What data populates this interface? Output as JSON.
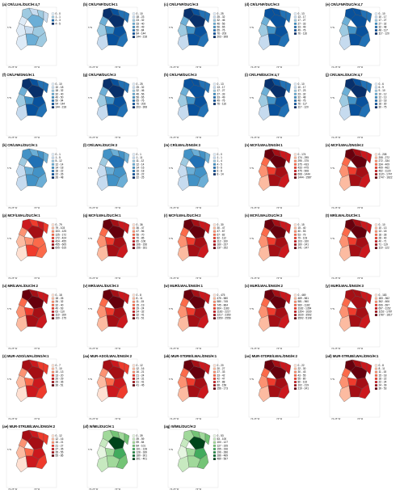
{
  "axis_labels": {
    "lat": "5°N",
    "lon1": "74.25°W",
    "lon2": "74°W"
  },
  "palettes": {
    "blue": [
      "#deebf7",
      "#c6dbef",
      "#9ecae1",
      "#6baed6",
      "#4292c6",
      "#2171b5",
      "#08519c",
      "#08306b"
    ],
    "red": [
      "#fee0d2",
      "#fcbba1",
      "#fc9272",
      "#fb6a4a",
      "#ef3b2c",
      "#cb181d",
      "#a50f15",
      "#67000d"
    ],
    "green": [
      "#e5f5e0",
      "#c7e9c0",
      "#a1d99b",
      "#74c476",
      "#41ab5d",
      "#238b45",
      "#006d2c",
      "#00441b"
    ]
  },
  "panels": [
    {
      "title": "(a) CR/LUAL/DUC/H:4,7",
      "palette": "blue",
      "legend": [
        "0 - 0",
        "1 - 1",
        "2 - 3",
        "4 - 5"
      ],
      "fills": [
        2,
        1,
        2,
        0,
        3,
        1,
        2,
        1,
        0,
        0,
        3,
        2
      ]
    },
    {
      "title": "(b) CR/LFNF/DUC/H:1",
      "palette": "blue",
      "legend": [
        "0 - 10",
        "18 - 23",
        "23 - 32",
        "33 - 40",
        "40 - 49",
        "50 - 84",
        "84 - 144",
        "144 - 218"
      ],
      "fills": [
        7,
        6,
        5,
        3,
        7,
        5,
        6,
        4,
        2,
        1,
        6,
        5
      ]
    },
    {
      "title": "(c) CR/LFNF/DUC/H:3",
      "palette": "blue",
      "legend": [
        "0 - 25",
        "25 - 32",
        "32 - 46",
        "46 - 56",
        "56 - 65",
        "65 - 76",
        "76 - 203",
        "203 - 308"
      ],
      "fills": [
        7,
        6,
        5,
        3,
        7,
        5,
        6,
        4,
        2,
        1,
        6,
        5
      ]
    },
    {
      "title": "(d) CR/LFNF/DUC/H:3",
      "palette": "blue",
      "legend": [
        "0 - 13",
        "13 - 17",
        "17 - 27",
        "27 - 33",
        "33 - 49",
        "49 - 76",
        "76 - 116"
      ],
      "fills": [
        6,
        6,
        5,
        3,
        6,
        5,
        6,
        4,
        2,
        1,
        6,
        5
      ]
    },
    {
      "title": "(e) CR/LFNF/DUC/H:4,7",
      "palette": "blue",
      "legend": [
        "0 - 10",
        "10 - 17",
        "17 - 27",
        "27 - 32",
        "32 - 48",
        "48 - 117",
        "117 - 120"
      ],
      "fills": [
        6,
        6,
        5,
        3,
        6,
        5,
        6,
        4,
        2,
        1,
        6,
        5
      ]
    },
    {
      "title": "(f) CR/LFM/DNG/H:1",
      "palette": "blue",
      "legend": [
        "0 - 10",
        "10 - 18",
        "18 - 32",
        "32 - 40",
        "40 - 50",
        "50 - 94",
        "94 - 144",
        "144 - 218"
      ],
      "fills": [
        7,
        6,
        5,
        3,
        7,
        5,
        6,
        4,
        2,
        1,
        6,
        5
      ]
    },
    {
      "title": "(g) CR/LFM/DUC/H:3",
      "palette": "blue",
      "legend": [
        "0 - 25",
        "25 - 32",
        "32 - 46",
        "46 - 56",
        "56 - 65",
        "65 - 76",
        "76 - 203",
        "203 - 308"
      ],
      "fills": [
        7,
        6,
        5,
        3,
        7,
        5,
        6,
        4,
        2,
        1,
        6,
        5
      ]
    },
    {
      "title": "(h) CR/LFM/DUC/H:3",
      "palette": "blue",
      "legend": [
        "0 - 13",
        "13 - 17",
        "17 - 27",
        "27 - 33",
        "33 - 49",
        "49 - 76",
        "76 - 116"
      ],
      "fills": [
        6,
        6,
        5,
        3,
        6,
        5,
        6,
        4,
        2,
        1,
        6,
        5
      ]
    },
    {
      "title": "(i) CR/LFM/DUC/H:4,7",
      "palette": "blue",
      "legend": [
        "0 - 10",
        "10 - 17",
        "17 - 23",
        "23 - 32",
        "32 - 48",
        "48 - 76",
        "76 - 117",
        "117 - 120"
      ],
      "fills": [
        7,
        6,
        5,
        3,
        7,
        5,
        6,
        4,
        2,
        1,
        6,
        5
      ]
    },
    {
      "title": "(j) CR/LWAL/DUC/H:4,7",
      "palette": "blue",
      "legend": [
        "0 - 6",
        "6 - 9",
        "9 - 10",
        "10 - 12",
        "12 - 13",
        "13 - 18",
        "18 - 30",
        "30 - 75"
      ],
      "fills": [
        7,
        6,
        5,
        3,
        7,
        5,
        6,
        4,
        2,
        1,
        6,
        5
      ]
    },
    {
      "title": "(k) CR/LWAL/DUC/H:1",
      "palette": "blue",
      "legend": [
        "0 - 1",
        "1 - 5",
        "5 - 12",
        "12 - 14",
        "14 - 18",
        "18 - 22",
        "22 - 26",
        "26 - 48"
      ],
      "fills": [
        4,
        3,
        4,
        2,
        5,
        3,
        4,
        3,
        1,
        1,
        4,
        3
      ]
    },
    {
      "title": "(l) CR/LWAL/DUC/H:3",
      "palette": "blue",
      "legend": [
        "0 - 1",
        "1 - 11",
        "11 - 12",
        "12 - 14",
        "14 - 16",
        "16 - 18",
        "18 - 22",
        "22 - 25"
      ],
      "fills": [
        4,
        3,
        4,
        2,
        5,
        3,
        4,
        3,
        1,
        1,
        4,
        3
      ]
    },
    {
      "title": "(m) CR/LWAL/DNG/H:3",
      "palette": "blue",
      "legend": [
        "0 - 0",
        "1 - 1",
        "1 - 4",
        "4 - 5",
        "5 - 6",
        "6 - 8",
        "8 - 14"
      ],
      "fills": [
        4,
        3,
        4,
        2,
        5,
        3,
        4,
        3,
        1,
        1,
        4,
        3
      ]
    },
    {
      "title": "(n) MCF/LWAL/DNG/H:1",
      "palette": "red",
      "legend": [
        "0 - 174",
        "174 - 295",
        "295 - 375",
        "375 - 433",
        "433 - 475",
        "475 - 608",
        "608 - 1444",
        "1444 - 1587"
      ],
      "fills": [
        7,
        6,
        5,
        3,
        7,
        5,
        6,
        4,
        2,
        1,
        6,
        5
      ]
    },
    {
      "title": "(o) MCF/LWAL/DNG/H:2",
      "palette": "red",
      "legend": [
        "0 - 208",
        "208 - 272",
        "272 - 334",
        "334 - 409",
        "409 - 462",
        "462 - 1120",
        "1120 - 1747",
        "1747 - 1822"
      ],
      "fills": [
        7,
        6,
        5,
        3,
        7,
        5,
        6,
        4,
        2,
        1,
        6,
        5
      ]
    },
    {
      "title": "(p) MCF/LWAL/DUC/H:1",
      "palette": "red",
      "legend": [
        "0 - 79",
        "79 - 103",
        "103 - 125",
        "125 - 172",
        "172 - 424",
        "424 - 455",
        "455 - 605",
        "605 - 615"
      ],
      "fills": [
        5,
        4,
        5,
        2,
        6,
        4,
        3,
        2,
        1,
        0,
        4,
        3
      ]
    },
    {
      "title": "(q) MCF/LWAL/DUC/H:1",
      "palette": "red",
      "legend": [
        "0 - 36",
        "36 - 47",
        "47 - 56",
        "56 - 70",
        "70 - 85",
        "85 - 106",
        "106 - 156",
        "156 - 181"
      ],
      "fills": [
        7,
        6,
        5,
        3,
        7,
        5,
        6,
        4,
        2,
        1,
        6,
        5
      ]
    },
    {
      "title": "(r) MCF/LWAL/DUC/H:2",
      "palette": "red",
      "legend": [
        "0 - 30",
        "30 - 47",
        "47 - 67",
        "67 - 82",
        "82 - 112",
        "112 - 160",
        "160 - 237",
        "237 - 252"
      ],
      "fills": [
        7,
        6,
        5,
        3,
        7,
        5,
        6,
        4,
        2,
        1,
        6,
        5
      ]
    },
    {
      "title": "(s) MCF/LWAL/DUC/H:3",
      "palette": "red",
      "legend": [
        "0 - 15",
        "15 - 40",
        "40 - 53",
        "53 - 79",
        "79 - 103",
        "103 - 160",
        "160 - 241",
        "241 - 247"
      ],
      "fills": [
        7,
        6,
        5,
        3,
        7,
        5,
        6,
        4,
        2,
        1,
        6,
        5
      ]
    },
    {
      "title": "(t) MR/LWAL/DUC/H:1",
      "palette": "red",
      "legend": [
        "0 - 10",
        "10 - 13",
        "13 - 18",
        "18 - 28",
        "28 - 40",
        "40 - 71",
        "71 - 119",
        "119 - 122"
      ],
      "fills": [
        7,
        6,
        5,
        3,
        7,
        5,
        6,
        4,
        2,
        1,
        6,
        5
      ]
    },
    {
      "title": "(u) MR/LWAL/DUC/H:2",
      "palette": "red",
      "legend": [
        "0 - 18",
        "18 - 26",
        "26 - 32",
        "32 - 40",
        "40 - 63",
        "63 - 110",
        "110 - 169",
        "169 - 175"
      ],
      "fills": [
        7,
        6,
        5,
        3,
        7,
        5,
        6,
        4,
        2,
        1,
        6,
        5
      ]
    },
    {
      "title": "(v) MR/LWAL/DUC/H:3",
      "palette": "red",
      "legend": [
        "0 - 8",
        "8 - 11",
        "11 - 15",
        "15 - 19",
        "19 - 24",
        "24 - 32",
        "32 - 41",
        "41 - 51"
      ],
      "fills": [
        7,
        6,
        5,
        3,
        7,
        5,
        6,
        4,
        2,
        1,
        6,
        5
      ]
    },
    {
      "title": "(w) MUR/LWAL/DNG/H:1",
      "palette": "red",
      "legend": [
        "0 - 475",
        "475 - 580",
        "580 - 745",
        "745 - 864",
        "864 - 1183",
        "1183 - 2217",
        "2217 - 2350",
        "2350 - 2556"
      ],
      "fills": [
        7,
        6,
        5,
        3,
        7,
        5,
        6,
        4,
        2,
        1,
        6,
        5
      ]
    },
    {
      "title": "(x) MUR/LWAL/DNG/H:2",
      "palette": "red",
      "legend": [
        "0 - 469",
        "469 - 581",
        "581 - 960",
        "960 - 1182",
        "1182 - 1354",
        "1354 - 1630",
        "1630 - 3592",
        "3592 - 5108"
      ],
      "fills": [
        7,
        6,
        5,
        3,
        7,
        5,
        6,
        4,
        2,
        1,
        6,
        5
      ]
    },
    {
      "title": "(y) MUR/LWAL/DNG/H:3",
      "palette": "red",
      "legend": [
        "0 - 183",
        "183 - 362",
        "362 - 606",
        "606 - 697",
        "697 - 1152",
        "1152 - 1787",
        "1787 - 1817"
      ],
      "fills": [
        6,
        6,
        5,
        3,
        6,
        5,
        6,
        4,
        2,
        1,
        6,
        5
      ]
    },
    {
      "title": "(z) MUR-ADO/LWAL/DNG/H:1",
      "palette": "red",
      "legend": [
        "0 - 7",
        "7 - 10",
        "10 - 13",
        "13 - 20",
        "20 - 29",
        "29 - 36",
        "36 - 51"
      ],
      "fills": [
        6,
        5,
        4,
        2,
        6,
        4,
        5,
        3,
        1,
        0,
        5,
        4
      ]
    },
    {
      "title": "(aa) MUR-ADO/LWAL/DNG/H:2",
      "palette": "red",
      "legend": [
        "0 - 12",
        "12 - 16",
        "16 - 21",
        "21 - 24",
        "24 - 31",
        "31 - 41",
        "41 - 45"
      ],
      "fills": [
        6,
        5,
        4,
        2,
        6,
        4,
        5,
        3,
        1,
        0,
        5,
        4
      ]
    },
    {
      "title": "(ab) MUR-STDRE/LWAL/DNG/H:1",
      "palette": "red",
      "legend": [
        "0 - 20",
        "20 - 27",
        "27 - 33",
        "33 - 42",
        "42 - 47",
        "47 - 88",
        "88 - 156",
        "156 - 173"
      ],
      "fills": [
        7,
        6,
        5,
        3,
        7,
        5,
        6,
        4,
        2,
        1,
        6,
        5
      ]
    },
    {
      "title": "(ac) MUR-STDRE/LWAL/DNG/H:2",
      "palette": "red",
      "legend": [
        "0 - 22",
        "22 - 30",
        "30 - 43",
        "43 - 55",
        "55 - 80",
        "80 - 102",
        "102 - 219",
        "219 - 241"
      ],
      "fills": [
        7,
        6,
        5,
        3,
        7,
        5,
        6,
        4,
        2,
        1,
        6,
        5
      ]
    },
    {
      "title": "(ad) MUR-STRUB/LWAL/DNG/H:1",
      "palette": "red",
      "legend": [
        "0 - 8",
        "8 - 11",
        "11 - 15",
        "15 - 18",
        "18 - 22",
        "22 - 24",
        "24 - 39",
        "39 - 53"
      ],
      "fills": [
        7,
        6,
        5,
        3,
        7,
        5,
        6,
        4,
        2,
        1,
        6,
        5
      ]
    },
    {
      "title": "(ae) MUR-STRUB/LWAL/DNG/H:2",
      "palette": "red",
      "legend": [
        "0 - 12",
        "12 - 16",
        "16 - 21",
        "21 - 27",
        "27 - 35",
        "35 - 55",
        "55 - 85"
      ],
      "fills": [
        6,
        5,
        4,
        2,
        6,
        4,
        5,
        3,
        1,
        0,
        5,
        4
      ]
    },
    {
      "title": "(af) W/MIL/DUC/H:1",
      "palette": "green",
      "legend": [
        "0 - 39",
        "39 - 59",
        "59 - 84",
        "84 - 101",
        "101 - 128",
        "128 - 189",
        "189 - 301",
        "301 - 401"
      ],
      "fills": [
        2,
        3,
        2,
        1,
        7,
        3,
        4,
        2,
        0,
        1,
        2,
        3
      ]
    },
    {
      "title": "(ag) W/MIL/DUC/H:2",
      "palette": "green",
      "legend": [
        "0 - 53",
        "53 - 100",
        "100 - 127",
        "127 - 155",
        "155 - 196",
        "196 - 286",
        "286 - 489",
        "489 - 567"
      ],
      "fills": [
        2,
        3,
        2,
        1,
        7,
        3,
        4,
        2,
        0,
        1,
        2,
        3
      ]
    }
  ]
}
